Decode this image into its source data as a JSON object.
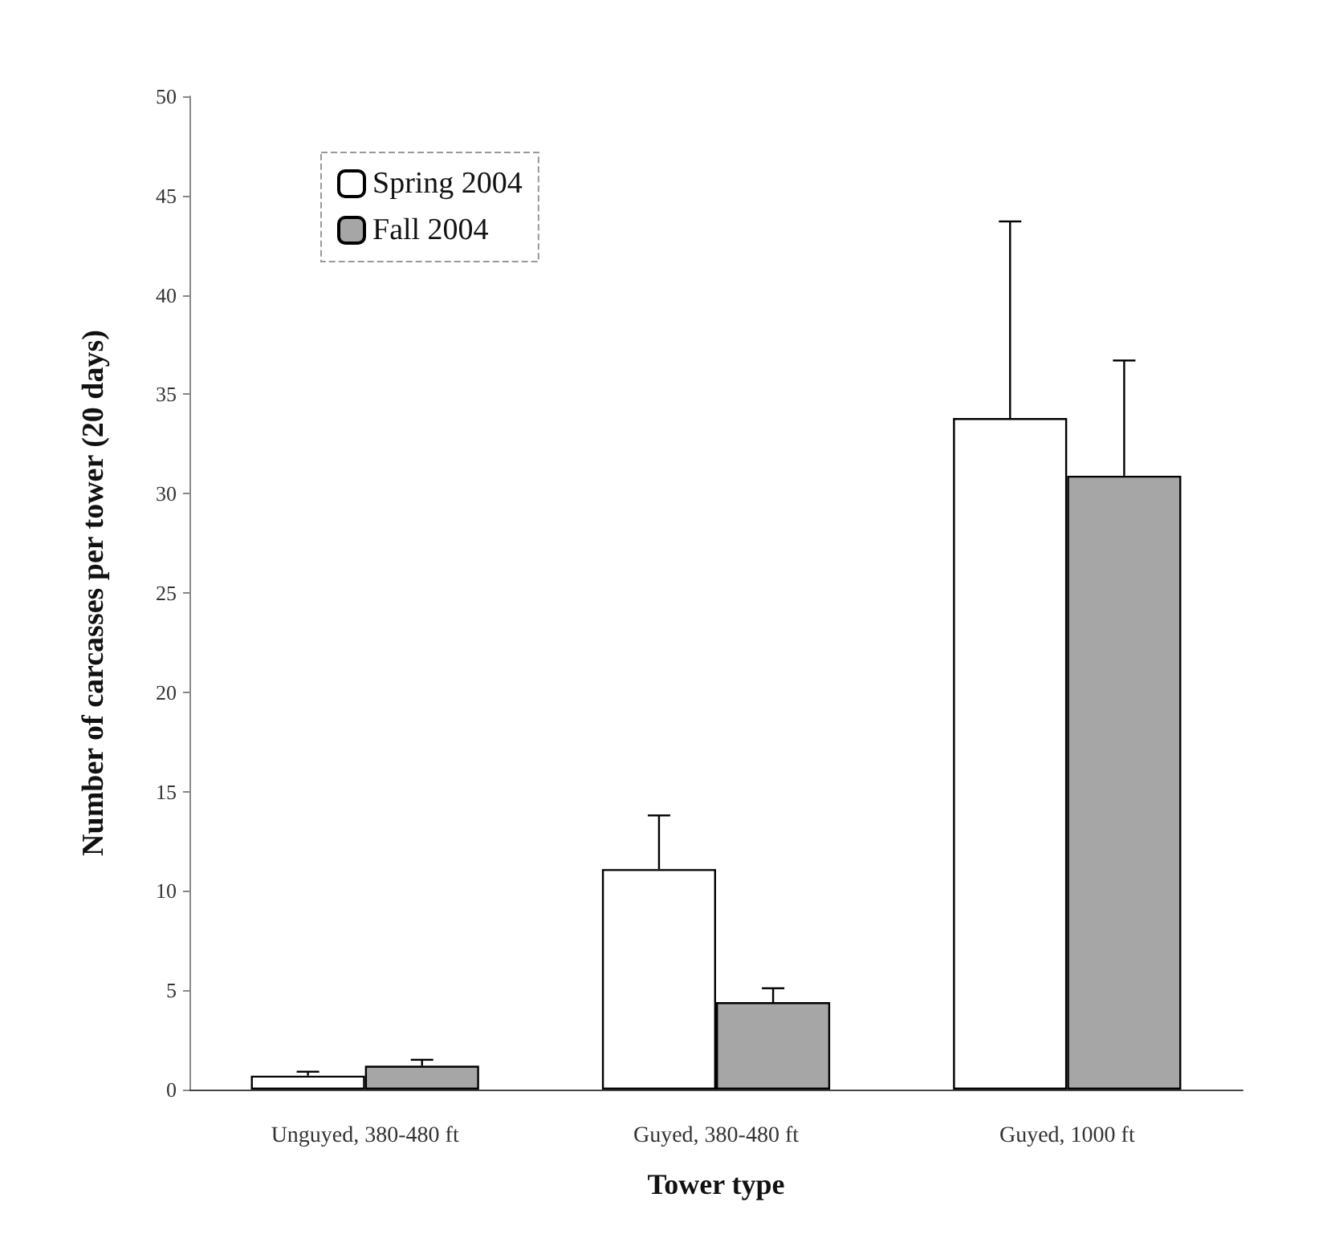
{
  "chart_data": {
    "type": "bar",
    "xlabel": "Tower type",
    "ylabel": "Number of carcasses per tower (20 days)",
    "categories": [
      "Unguyed, 380-480 ft",
      "Guyed, 380-480 ft",
      "Guyed, 1000 ft"
    ],
    "series": [
      {
        "name": "Spring 2004",
        "color": "#ffffff",
        "values": [
          0.7,
          11.1,
          33.8
        ],
        "errors": [
          [
            0.7,
            0.9
          ],
          [
            11.1,
            13.8
          ],
          [
            33.8,
            43.7
          ]
        ]
      },
      {
        "name": "Fall 2004",
        "color": "#a6a6a6",
        "values": [
          1.2,
          4.4,
          30.9
        ],
        "errors": [
          [
            1.2,
            1.5
          ],
          [
            4.4,
            5.1
          ],
          [
            30.9,
            36.7
          ]
        ]
      }
    ],
    "ylim": [
      0,
      50
    ],
    "yticks": [
      0,
      5,
      10,
      15,
      20,
      25,
      30,
      35,
      40,
      45,
      50
    ],
    "grid": false,
    "legend": "top left"
  }
}
